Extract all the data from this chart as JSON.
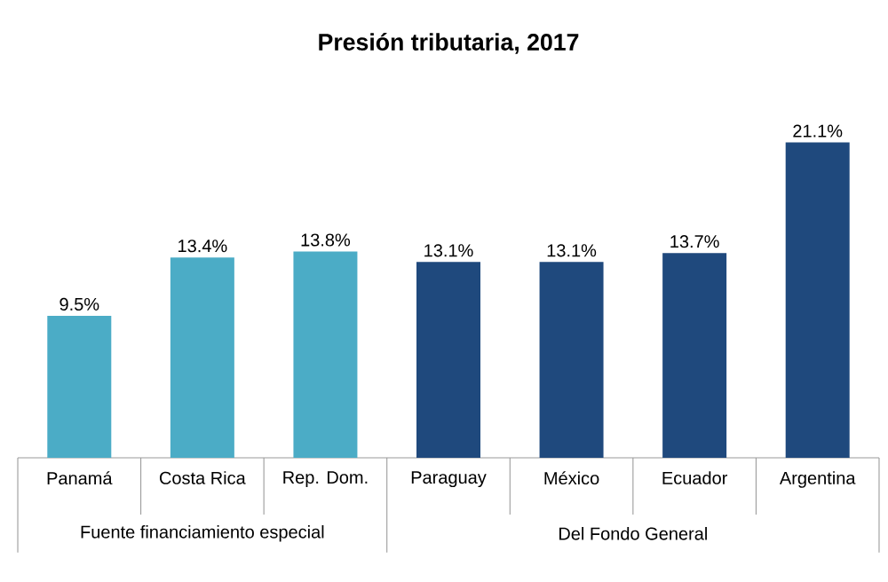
{
  "chart_data": {
    "type": "bar",
    "title": "Presión tributaria, 2017",
    "categories": [
      "Panamá",
      "Costa Rica",
      "Rep. Dom.",
      "Paraguay",
      "México",
      "Ecuador",
      "Argentina"
    ],
    "series": [
      {
        "color": "#4bacc6",
        "values": [
          9.5,
          13.4,
          13.8,
          null,
          null,
          null,
          null
        ],
        "value_labels": [
          "9.5%",
          "13.4%",
          "13.8%",
          null,
          null,
          null,
          null
        ]
      },
      {
        "color": "#1f497d",
        "values": [
          null,
          null,
          null,
          13.1,
          13.1,
          13.7,
          21.1
        ],
        "value_labels": [
          null,
          null,
          null,
          "13.1%",
          "13.1%",
          "13.7%",
          "21.1%"
        ]
      }
    ],
    "annotations": [
      "Fuente financiamiento especial",
      "Del Fondo General"
    ],
    "tick_labels": "x"
  }
}
